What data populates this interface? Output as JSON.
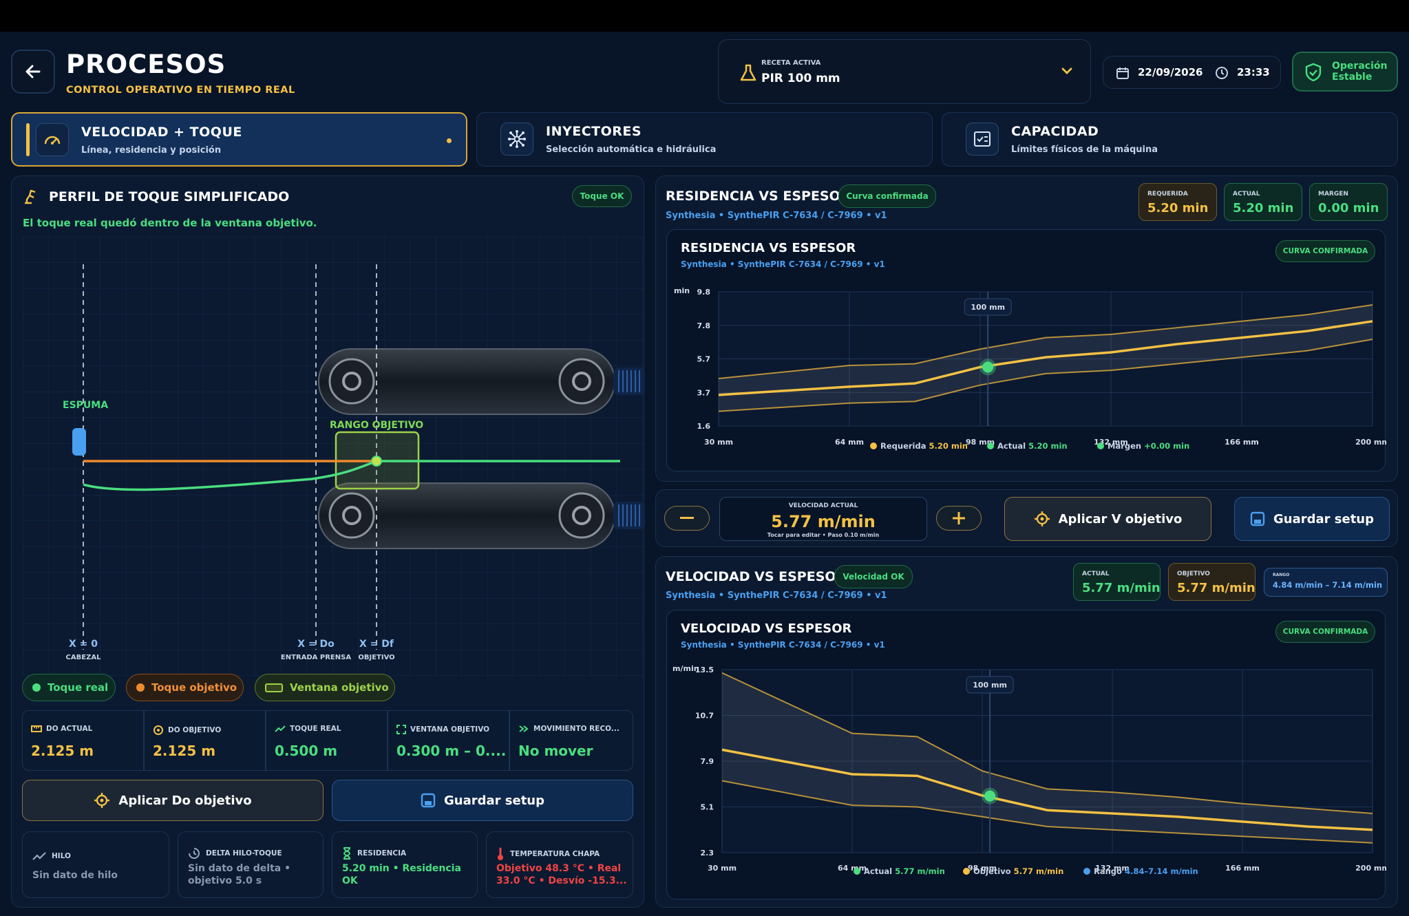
{
  "header": {
    "title": "PROCESOS",
    "subtitle": "CONTROL OPERATIVO EN TIEMPO REAL"
  },
  "recipe": {
    "label": "RECETA ACTIVA",
    "value": "PIR 100 mm"
  },
  "datetime": {
    "date": "22/09/2026",
    "time": "23:33"
  },
  "status": {
    "line1": "Operación",
    "line2": "Estable"
  },
  "tabs": [
    {
      "title": "VELOCIDAD + TOQUE",
      "sub": "Línea, residencia y posición",
      "icon": "speedometer-icon"
    },
    {
      "title": "INYECTORES",
      "sub": "Selección automática e hidráulica",
      "icon": "injector-icon"
    },
    {
      "title": "CAPACIDAD",
      "sub": "Límites físicos de la máquina",
      "icon": "capacity-icon"
    }
  ],
  "profile": {
    "title": "PERFIL DE TOQUE SIMPLIFICADO",
    "badge": "Toque OK",
    "message": "El toque real quedó dentro de la ventana objetivo.",
    "foam_label": "ESPUMA",
    "range_label": "RANGO OBJETIVO",
    "markers": [
      {
        "label": "X = 0",
        "sub": "CABEZAL"
      },
      {
        "label": "X = Do",
        "sub": "ENTRADA PRENSA"
      },
      {
        "label": "X = Df",
        "sub": "OBJETIVO"
      }
    ],
    "legend": [
      "Toque real",
      "Toque objetivo",
      "Ventana objetivo"
    ],
    "metrics": [
      {
        "label": "DO ACTUAL",
        "value": "2.125 m",
        "color": "#f4c144",
        "icon": "ruler-icon"
      },
      {
        "label": "DO OBJETIVO",
        "value": "2.125 m",
        "color": "#f4c144",
        "icon": "target-icon"
      },
      {
        "label": "TOQUE REAL",
        "value": "0.500 m",
        "color": "#4ade80",
        "icon": "trend-icon"
      },
      {
        "label": "VENTANA OBJETIVO",
        "value": "0.300 m – 0....",
        "color": "#4ade80",
        "icon": "window-icon"
      },
      {
        "label": "MOVIMIENTO RECO...",
        "value": "No mover",
        "color": "#4ade80",
        "icon": "fast-forward-icon"
      }
    ],
    "apply_label": "Aplicar Do objetivo",
    "save_label": "Guardar setup",
    "cards": [
      {
        "label": "HILO",
        "value": "Sin dato de hilo",
        "color": "#8a98ad",
        "icon": "trend-icon"
      },
      {
        "label": "DELTA HILO-TOQUE",
        "value": "Sin dato de delta • objetivo 5.0 s",
        "color": "#8a98ad",
        "icon": "timer-icon"
      },
      {
        "label": "RESIDENCIA",
        "value": "5.20 min • Residencia OK",
        "color": "#4ade80",
        "icon": "hourglass-icon"
      },
      {
        "label": "TEMPERATURA CHAPA",
        "value": "Objetivo 48.3 °C • Real 33.0 °C • Desvío -15.3...",
        "color": "#f04444",
        "icon": "thermometer-icon"
      }
    ]
  },
  "residencia": {
    "title": "RESIDENCIA VS ESPESOR",
    "badge": "Curva confirmada",
    "source": "Synthesia • SynthePIR C-7634 / C-7969 • v1",
    "stats": [
      {
        "label": "REQUERIDA",
        "value": "5.20 min"
      },
      {
        "label": "ACTUAL",
        "value": "5.20 min"
      },
      {
        "label": "MARGEN",
        "value": "0.00 min"
      }
    ],
    "chart_title": "RESIDENCIA VS ESPESOR",
    "chart_badge": "CURVA CONFIRMADA"
  },
  "speed_control": {
    "label": "VELOCIDAD ACTUAL",
    "value": "5.77 m/min",
    "hint": "Tocar para editar • Paso 0.10 m/min",
    "apply_label": "Aplicar V objetivo",
    "save_label": "Guardar setup"
  },
  "velocidad": {
    "title": "VELOCIDAD VS ESPESOR",
    "badge": "Velocidad OK",
    "source": "Synthesia • SynthePIR C-7634 / C-7969 • v1",
    "stats": [
      {
        "label": "ACTUAL",
        "value": "5.77 m/min"
      },
      {
        "label": "OBJETIVO",
        "value": "5.77 m/min"
      },
      {
        "label": "RANGO",
        "value": "4.84 m/min – 7.14 m/min"
      }
    ],
    "chart_title": "VELOCIDAD VS ESPESOR",
    "chart_badge": "CURVA CONFIRMADA"
  },
  "chart_data": [
    {
      "type": "line",
      "title": "RESIDENCIA VS ESPESOR",
      "ylabel": "min",
      "xlim": [
        30,
        200
      ],
      "ylim": [
        1.6,
        9.8
      ],
      "yticks": [
        "9.8",
        "7.8",
        "5.7",
        "3.7",
        "1.6"
      ],
      "xticks": [
        "30 mm",
        "64 mm",
        "98 mm",
        "132 mm",
        "166 mm",
        "200 mm"
      ],
      "x": [
        30,
        64,
        81,
        98,
        115,
        132,
        149,
        166,
        183,
        200
      ],
      "series": [
        {
          "name": "Requerida",
          "values": [
            3.5,
            4.0,
            4.2,
            5.2,
            5.8,
            6.1,
            6.6,
            7.0,
            7.4,
            8.0
          ]
        },
        {
          "name": "upper",
          "values": [
            4.5,
            5.3,
            5.4,
            6.3,
            7.0,
            7.2,
            7.6,
            8.0,
            8.4,
            9.0
          ]
        },
        {
          "name": "lower",
          "values": [
            2.5,
            3.0,
            3.1,
            4.1,
            4.8,
            5.0,
            5.4,
            5.8,
            6.2,
            6.9
          ]
        }
      ],
      "marker": {
        "x": 100,
        "y": 5.2,
        "label": "100 mm"
      },
      "legend": [
        {
          "name": "Requerida",
          "value": "5.20 min",
          "color": "#f4c144"
        },
        {
          "name": "Actual",
          "value": "5.20 min",
          "color": "#4ade80"
        },
        {
          "name": "Margen",
          "value": "+0.00 min",
          "color": "#4ade80"
        }
      ]
    },
    {
      "type": "line",
      "title": "VELOCIDAD VS ESPESOR",
      "ylabel": "m/min",
      "xlim": [
        30,
        200
      ],
      "ylim": [
        2.3,
        13.5
      ],
      "yticks": [
        "13.5",
        "10.7",
        "7.9",
        "5.1",
        "2.3"
      ],
      "xticks": [
        "30 mm",
        "64 mm",
        "98 mm",
        "132 mm",
        "166 mm",
        "200 mm"
      ],
      "x": [
        30,
        64,
        81,
        98,
        115,
        132,
        149,
        166,
        183,
        200
      ],
      "series": [
        {
          "name": "Objetivo",
          "values": [
            8.6,
            7.1,
            7.0,
            5.8,
            4.9,
            4.7,
            4.5,
            4.2,
            3.9,
            3.7
          ]
        },
        {
          "name": "upper",
          "values": [
            13.3,
            9.6,
            9.4,
            7.3,
            6.2,
            6.0,
            5.7,
            5.3,
            5.0,
            4.7
          ]
        },
        {
          "name": "lower",
          "values": [
            6.7,
            5.2,
            5.1,
            4.5,
            3.9,
            3.7,
            3.5,
            3.3,
            3.1,
            2.9
          ]
        }
      ],
      "marker": {
        "x": 100,
        "y": 5.77,
        "label": "100 mm"
      },
      "legend": [
        {
          "name": "Actual",
          "value": "5.77 m/min",
          "color": "#4ade80"
        },
        {
          "name": "Objetivo",
          "value": "5.77 m/min",
          "color": "#f4c144"
        },
        {
          "name": "Rango",
          "value": "4.84–7.14 m/min",
          "color": "#4aa0f0"
        }
      ]
    }
  ]
}
